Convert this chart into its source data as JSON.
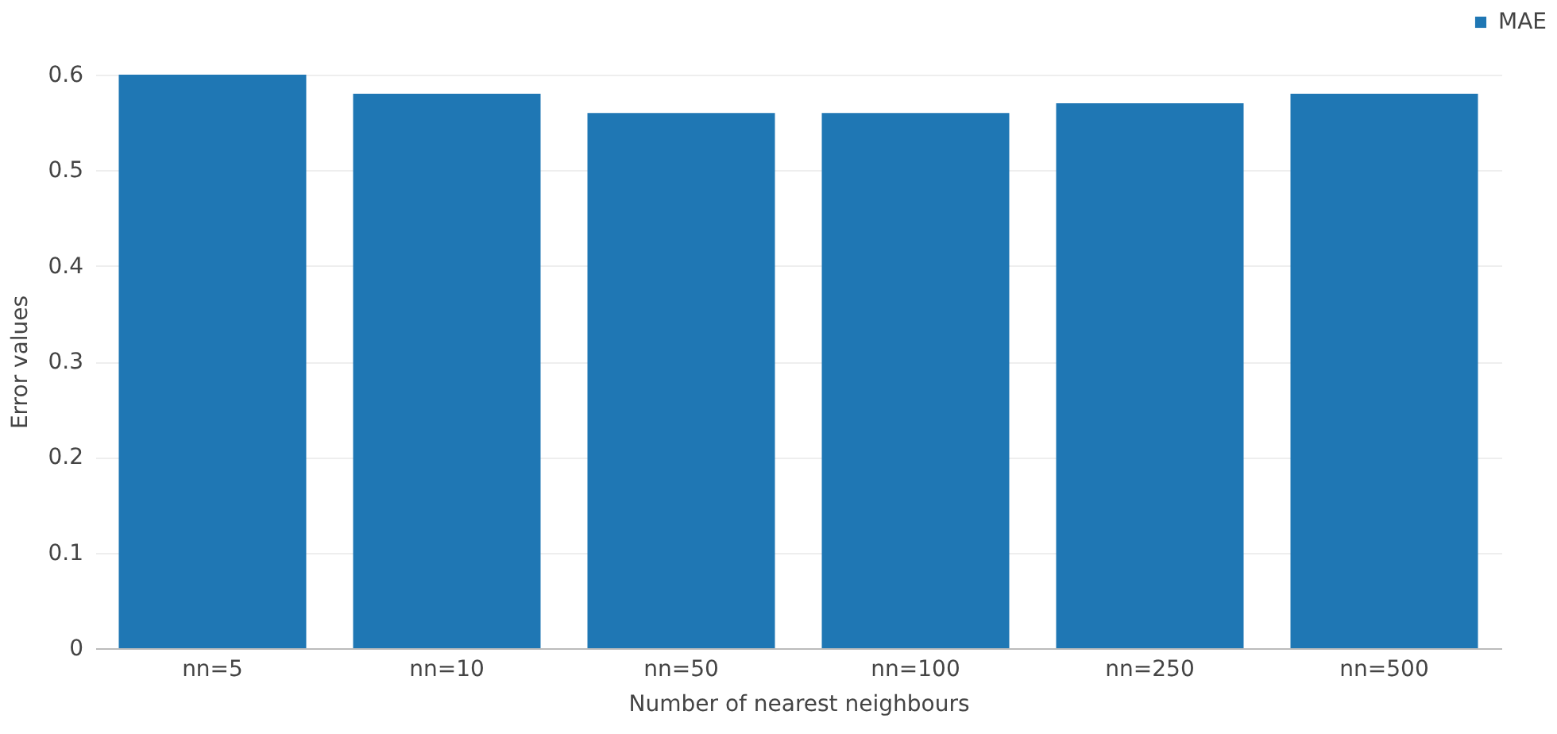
{
  "chart_data": {
    "type": "bar",
    "categories": [
      "nn=5",
      "nn=10",
      "nn=50",
      "nn=100",
      "nn=250",
      "nn=500"
    ],
    "series": [
      {
        "name": "MAE",
        "color": "#1f77b4",
        "values": [
          0.6,
          0.58,
          0.56,
          0.56,
          0.57,
          0.58
        ]
      }
    ],
    "xlabel": "Number of nearest neighbours",
    "ylabel": "Error values",
    "ylim": [
      0,
      0.6
    ],
    "yticks": [
      {
        "value": 0,
        "label": "0"
      },
      0.1,
      0.2,
      0.3,
      0.4,
      0.5,
      0.6
    ],
    "grid": "y",
    "legend": "top right"
  }
}
